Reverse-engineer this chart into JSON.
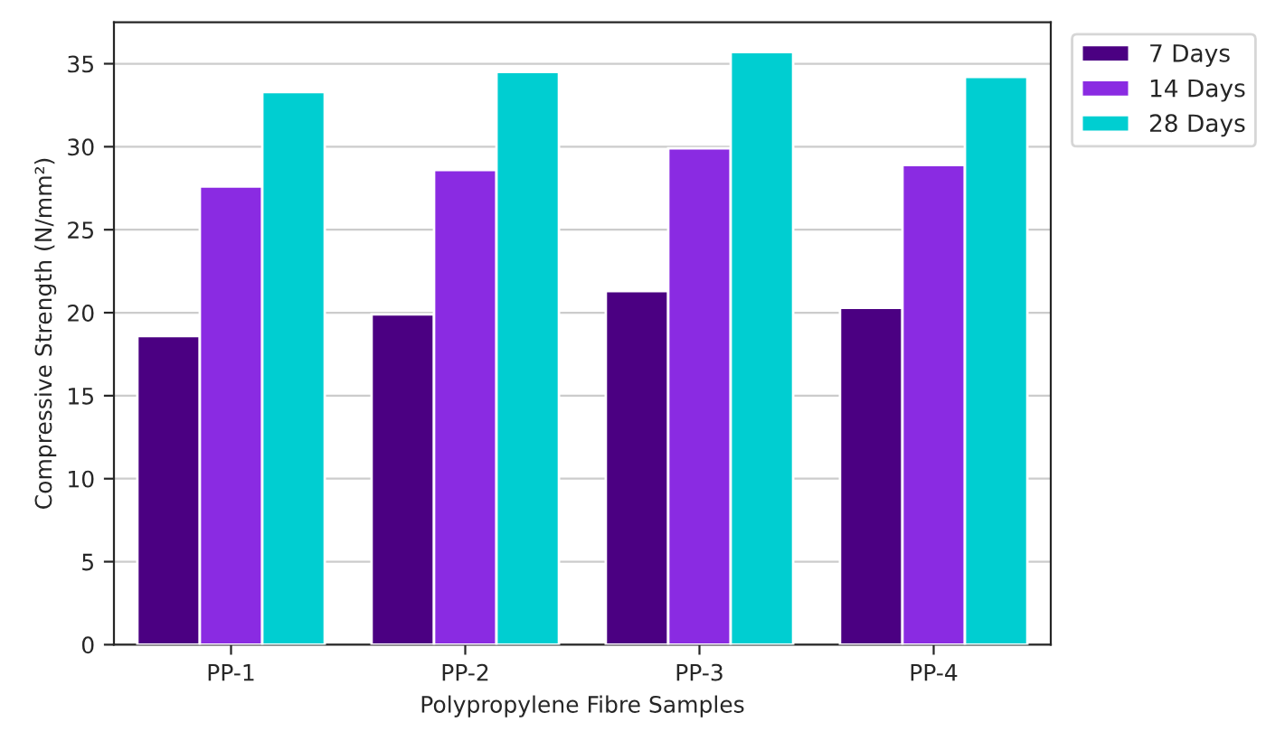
{
  "chart_data": {
    "type": "bar",
    "xlabel": "Polypropylene Fibre Samples",
    "ylabel": "Compressive Strength (N/mm²)",
    "categories": [
      "PP-1",
      "PP-2",
      "PP-3",
      "PP-4"
    ],
    "series": [
      {
        "name": "7 Days",
        "color": "#4b0082",
        "values": [
          18.6,
          19.9,
          21.3,
          20.3
        ]
      },
      {
        "name": "14 Days",
        "color": "#8a2be2",
        "values": [
          27.6,
          28.6,
          29.9,
          28.9
        ]
      },
      {
        "name": "28 Days",
        "color": "#00ced1",
        "values": [
          33.3,
          34.5,
          35.7,
          34.2
        ]
      }
    ],
    "ylim": [
      0,
      37.5
    ],
    "yticks": [
      0,
      5,
      10,
      15,
      20,
      25,
      30,
      35
    ],
    "grid": "y",
    "legend": "top right"
  }
}
